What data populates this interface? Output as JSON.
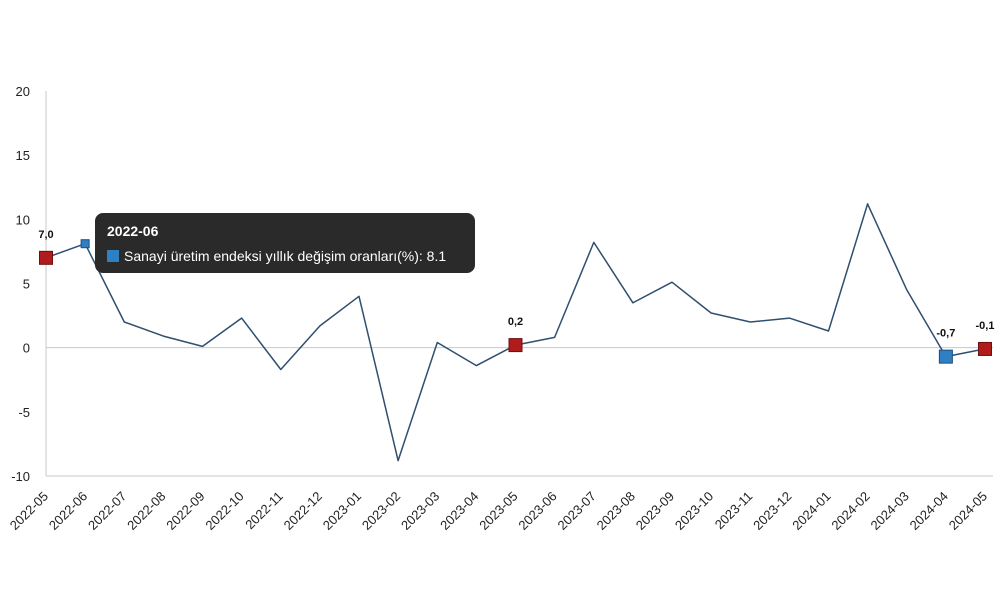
{
  "chart_data": {
    "type": "line",
    "categories": [
      "2022-05",
      "2022-06",
      "2022-07",
      "2022-08",
      "2022-09",
      "2022-10",
      "2022-11",
      "2022-12",
      "2023-01",
      "2023-02",
      "2023-03",
      "2023-04",
      "2023-05",
      "2023-06",
      "2023-07",
      "2023-08",
      "2023-09",
      "2023-10",
      "2023-11",
      "2023-12",
      "2024-01",
      "2024-02",
      "2024-03",
      "2024-04",
      "2024-05"
    ],
    "series": [
      {
        "name": "Sanayi üretim endeksi yıllık değişim oranları(%)",
        "values": [
          7.0,
          8.1,
          2.0,
          0.9,
          0.1,
          2.3,
          -1.7,
          1.7,
          4.0,
          -8.8,
          0.4,
          -1.4,
          0.2,
          0.8,
          8.2,
          3.5,
          5.1,
          2.7,
          2.0,
          2.3,
          1.3,
          11.2,
          4.5,
          -0.7,
          -0.1
        ],
        "color": "#2f4f6f"
      }
    ],
    "ylim": [
      -10,
      20
    ],
    "yticks": [
      "20",
      "15",
      "10",
      "5",
      "0",
      "-5",
      "-10"
    ],
    "ytick_values": [
      20,
      15,
      10,
      5,
      0,
      -5,
      -10
    ],
    "data_labels": [
      {
        "index": 0,
        "text": "7,0",
        "color": "#b01c1c"
      },
      {
        "index": 12,
        "text": "0,2",
        "color": "#b01c1c"
      },
      {
        "index": 23,
        "text": "-0,7",
        "color": "#2f7fc4"
      },
      {
        "index": 24,
        "text": "-0,1",
        "color": "#b01c1c"
      }
    ],
    "highlight_index": 1,
    "highlight_color": "#2f7fc4",
    "grid": "zero-line only",
    "legend": "none"
  },
  "tooltip": {
    "title": "2022-06",
    "label": "Sanayi üretim endeksi yıllık değişim oranları(%)",
    "value": "8.1",
    "swatch_color": "#2f7fc4"
  }
}
